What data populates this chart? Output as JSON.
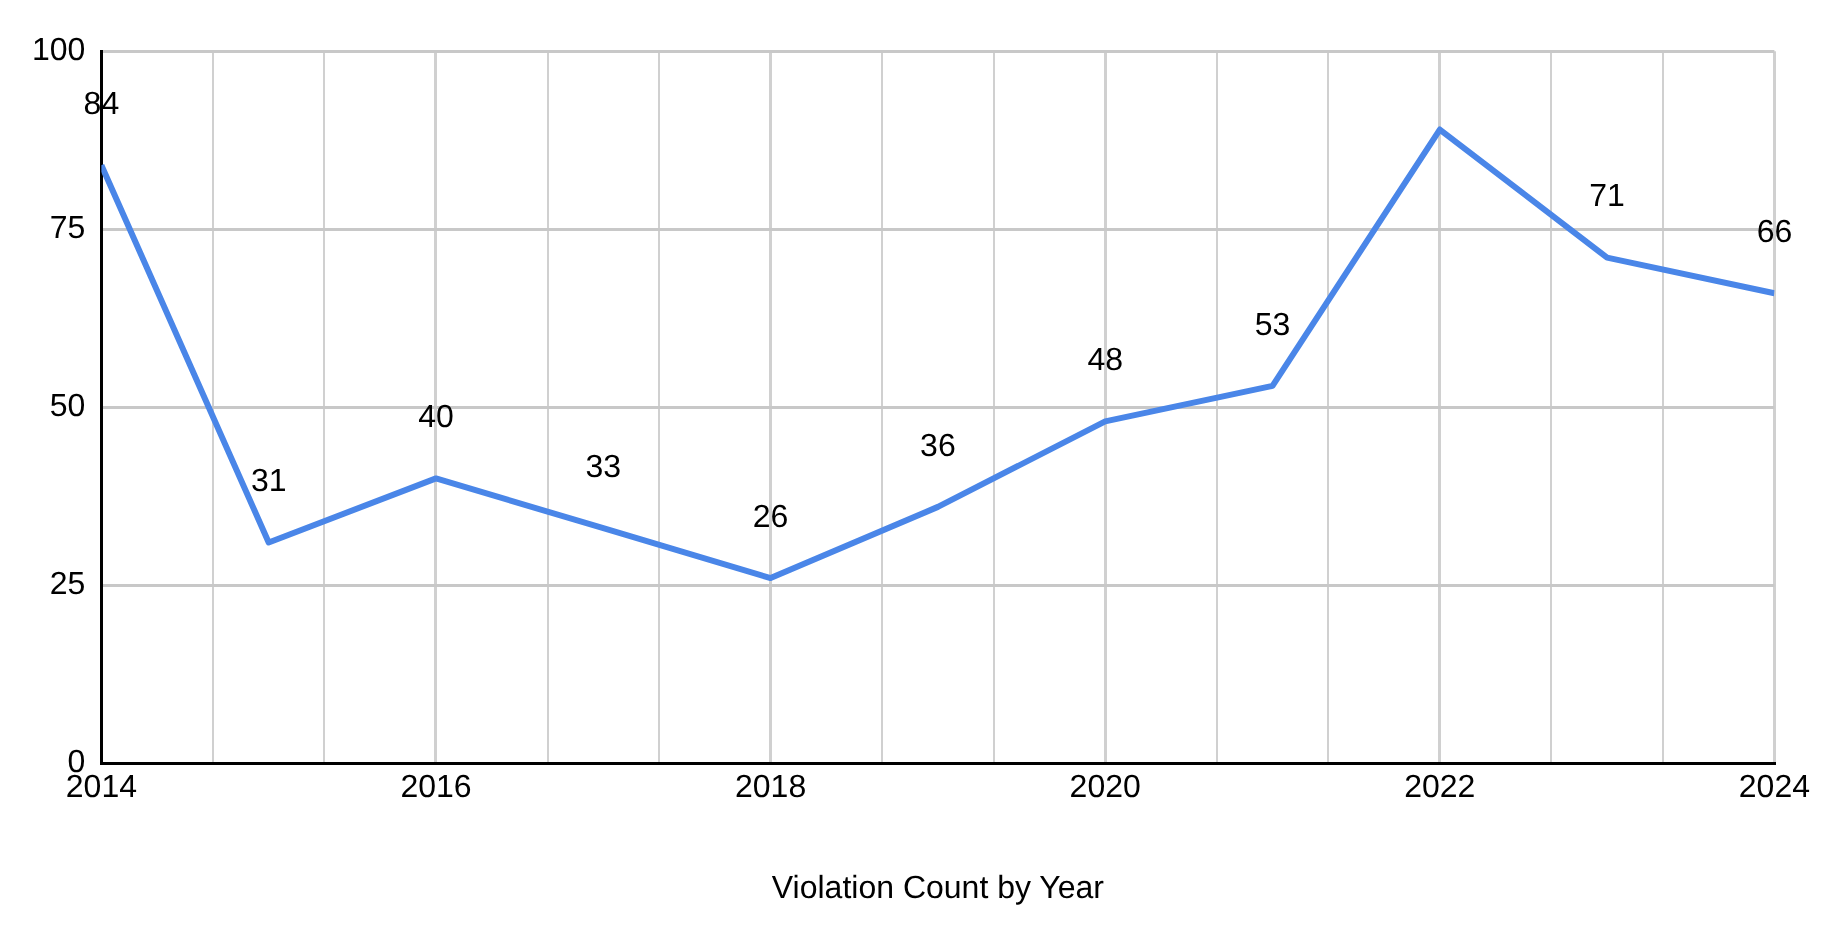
{
  "chart_data": {
    "type": "line",
    "xlabel": "Violation Count by Year",
    "x": [
      2014,
      2015,
      2016,
      2017,
      2018,
      2019,
      2020,
      2021,
      2022,
      2023,
      2024
    ],
    "series": [
      {
        "color": "#4a86e8",
        "values": [
          84,
          31,
          40,
          33,
          26,
          36,
          48,
          53,
          89,
          71,
          66
        ],
        "value_labels": [
          "84",
          "31",
          "40",
          "33",
          "26",
          "36",
          "48",
          "53",
          null,
          "71",
          "66"
        ]
      }
    ],
    "xlim": [
      2014,
      2024
    ],
    "xticks": [
      2014,
      {
        "value": 2014.667,
        "label": null
      },
      {
        "value": 2015.333,
        "label": null
      },
      2016,
      {
        "value": 2016.667,
        "label": null
      },
      {
        "value": 2017.333,
        "label": null
      },
      2018,
      {
        "value": 2018.667,
        "label": null
      },
      {
        "value": 2019.333,
        "label": null
      },
      2020,
      {
        "value": 2020.667,
        "label": null
      },
      {
        "value": 2021.333,
        "label": null
      },
      2022,
      {
        "value": 2022.667,
        "label": null
      },
      {
        "value": 2023.333,
        "label": null
      },
      2024
    ],
    "ylim": [
      0,
      100
    ],
    "yticks": [
      0,
      25,
      50,
      75,
      100
    ],
    "grid": true,
    "legend": false,
    "marker": "none",
    "line_style": "solid"
  }
}
